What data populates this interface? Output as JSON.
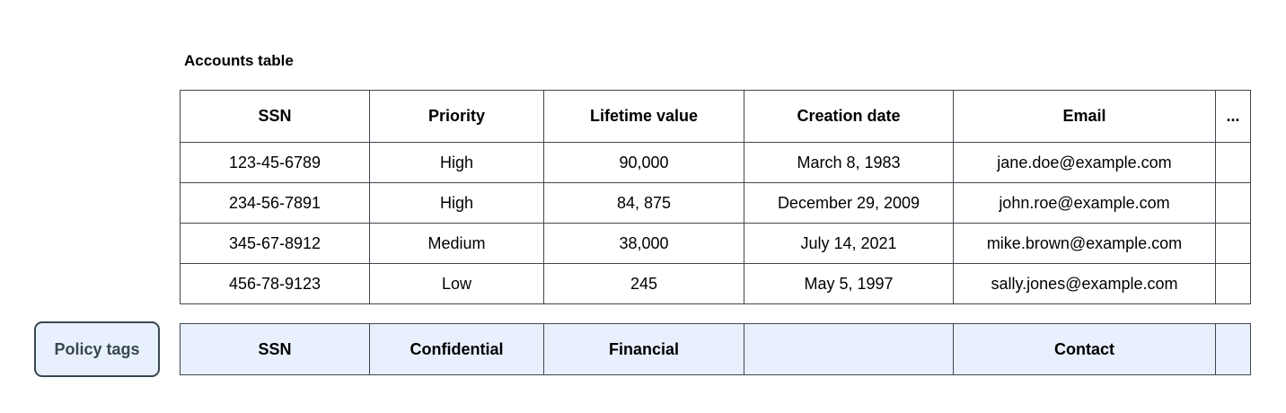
{
  "title": "Accounts table",
  "accounts_table": {
    "columns": [
      "SSN",
      "Priority",
      "Lifetime value",
      "Creation date",
      "Email",
      "..."
    ],
    "rows": [
      [
        "123-45-6789",
        "High",
        "90,000",
        "March 8, 1983",
        "jane.doe@example.com",
        ""
      ],
      [
        "234-56-7891",
        "High",
        "84, 875",
        "December 29, 2009",
        "john.roe@example.com",
        ""
      ],
      [
        "345-67-8912",
        "Medium",
        "38,000",
        "July 14, 2021",
        "mike.brown@example.com",
        ""
      ],
      [
        "456-78-9123",
        "Low",
        "245",
        "May 5, 1997",
        "sally.jones@example.com",
        ""
      ]
    ]
  },
  "policy_tags": {
    "button_label": "Policy tags",
    "tags": [
      "SSN",
      "Confidential",
      "Financial",
      "",
      "Contact",
      ""
    ]
  },
  "colors": {
    "policy_fill": "#e8f0fe",
    "policy_border": "#37474f",
    "policy_text": "#37474f",
    "table_border": "#40474f",
    "text": "#000000",
    "background": "#ffffff"
  }
}
